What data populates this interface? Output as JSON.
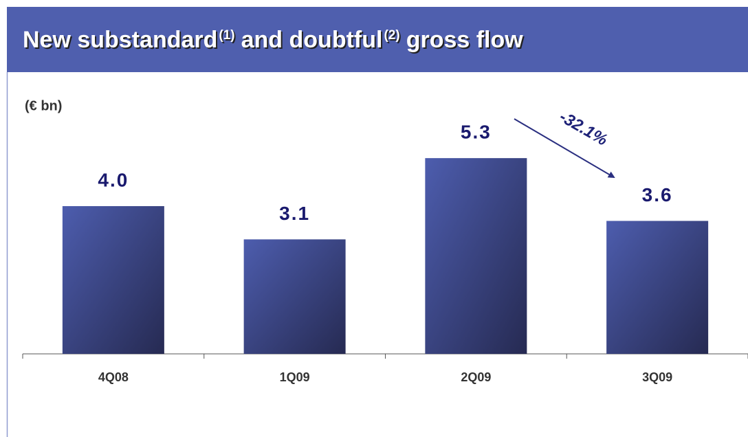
{
  "chart_data": {
    "type": "bar",
    "title_parts": [
      "New substandard",
      "(1)",
      "and doubtful",
      "(2)",
      "gross flow"
    ],
    "unit_label": "(€ bn)",
    "annotation": "-32.1%",
    "categories": [
      "4Q08",
      "1Q09",
      "2Q09",
      "3Q09"
    ],
    "values": [
      4.0,
      3.1,
      5.3,
      3.6
    ],
    "value_labels": [
      "4.0",
      "3.1",
      "5.3",
      "3.6"
    ],
    "color": "#4a5aa8"
  }
}
